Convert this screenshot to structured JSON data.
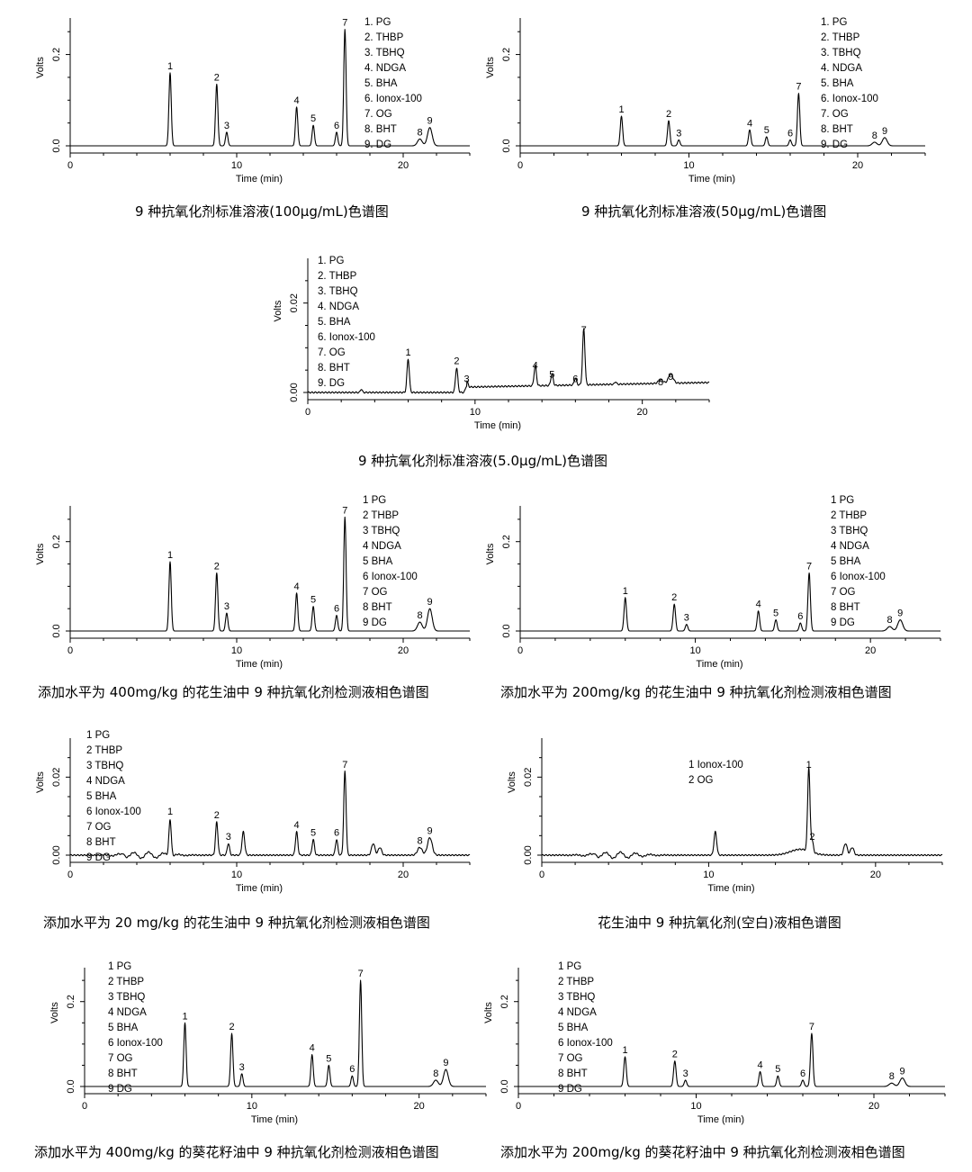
{
  "common": {
    "ylabel": "Volts",
    "xlabel": "Time (min)",
    "x_ticks": [
      "0",
      "10",
      "20"
    ]
  },
  "chart_data": [
    {
      "type": "line",
      "caption": "9 种抗氧化剂标准溶液(100μg/mL)色谱图",
      "xlabel": "Time (min)",
      "ylabel": "Volts",
      "xlim": [
        0,
        24
      ],
      "ylim": [
        0,
        0.28
      ],
      "y_ticks": [
        "0.0",
        "0.2"
      ],
      "y_tick_values": [
        0,
        0.2
      ],
      "legend": [
        "1. PG",
        "2. THBP",
        "3. TBHQ",
        "4. NDGA",
        "5. BHA",
        "6. Ionox-100",
        "7. OG",
        "8. BHT",
        "9. DG"
      ],
      "peaks": [
        {
          "label": "1",
          "t": 6.0,
          "h": 0.16
        },
        {
          "label": "2",
          "t": 8.8,
          "h": 0.135
        },
        {
          "label": "3",
          "t": 9.4,
          "h": 0.03
        },
        {
          "label": "4",
          "t": 13.6,
          "h": 0.085
        },
        {
          "label": "5",
          "t": 14.6,
          "h": 0.045
        },
        {
          "label": "6",
          "t": 16.0,
          "h": 0.03
        },
        {
          "label": "7",
          "t": 16.5,
          "h": 0.255
        },
        {
          "label": "8",
          "t": 21.0,
          "h": 0.015
        },
        {
          "label": "9",
          "t": 21.6,
          "h": 0.04
        }
      ]
    },
    {
      "type": "line",
      "caption": "9 种抗氧化剂标准溶液(50μg/mL)色谱图",
      "xlabel": "Time (min)",
      "ylabel": "Volts",
      "xlim": [
        0,
        24
      ],
      "ylim": [
        0,
        0.28
      ],
      "y_ticks": [
        "0.0",
        "0.2"
      ],
      "y_tick_values": [
        0,
        0.2
      ],
      "legend": [
        "1. PG",
        "2. THBP",
        "3. TBHQ",
        "4. NDGA",
        "5. BHA",
        "6. Ionox-100",
        "7. OG",
        "8. BHT",
        "9. DG"
      ],
      "peaks": [
        {
          "label": "1",
          "t": 6.0,
          "h": 0.065
        },
        {
          "label": "2",
          "t": 8.8,
          "h": 0.055
        },
        {
          "label": "3",
          "t": 9.4,
          "h": 0.013
        },
        {
          "label": "4",
          "t": 13.6,
          "h": 0.035
        },
        {
          "label": "5",
          "t": 14.6,
          "h": 0.02
        },
        {
          "label": "6",
          "t": 16.0,
          "h": 0.013
        },
        {
          "label": "7",
          "t": 16.5,
          "h": 0.115
        },
        {
          "label": "8",
          "t": 21.0,
          "h": 0.008
        },
        {
          "label": "9",
          "t": 21.6,
          "h": 0.018
        }
      ]
    },
    {
      "type": "line",
      "caption": "9 种抗氧化剂标准溶液(5.0μg/mL)色谱图",
      "xlabel": "Time (min)",
      "ylabel": "Volts",
      "xlim": [
        0,
        24
      ],
      "ylim": [
        0,
        0.03
      ],
      "y_ticks": [
        "0.00",
        "0.02"
      ],
      "y_tick_values": [
        0,
        0.02
      ],
      "legend": [
        "1. PG",
        "2. THBP",
        "3. TBHQ",
        "4. NDGA",
        "5. BHA",
        "6. Ionox-100",
        "7. OG",
        "8. BHT",
        "9. DG"
      ],
      "peaks": [
        {
          "label": "1",
          "t": 6.0,
          "h": 0.0075
        },
        {
          "label": "2",
          "t": 8.9,
          "h": 0.0055
        },
        {
          "label": "3",
          "t": 9.5,
          "h": 0.0015
        },
        {
          "label": "4",
          "t": 13.6,
          "h": 0.0045
        },
        {
          "label": "5",
          "t": 14.6,
          "h": 0.0025
        },
        {
          "label": "6",
          "t": 16.0,
          "h": 0.0015
        },
        {
          "label": "7",
          "t": 16.5,
          "h": 0.0125
        },
        {
          "label": "8",
          "t": 21.1,
          "h": 0.0008
        },
        {
          "label": "9",
          "t": 21.7,
          "h": 0.002
        }
      ]
    },
    {
      "type": "line",
      "caption": "添加水平为 400mg/kg 的花生油中 9 种抗氧化剂检测液相色谱图",
      "xlabel": "Time (min)",
      "ylabel": "Volts",
      "xlim": [
        0,
        24
      ],
      "ylim": [
        0,
        0.28
      ],
      "y_ticks": [
        "0.0",
        "0.2"
      ],
      "y_tick_values": [
        0,
        0.2
      ],
      "legend": [
        "1 PG",
        "2 THBP",
        "3 TBHQ",
        "4 NDGA",
        "5 BHA",
        "6 Ionox-100",
        "7 OG",
        "8 BHT",
        "9 DG"
      ],
      "peaks": [
        {
          "label": "1",
          "t": 6.0,
          "h": 0.155
        },
        {
          "label": "2",
          "t": 8.8,
          "h": 0.13
        },
        {
          "label": "3",
          "t": 9.4,
          "h": 0.04
        },
        {
          "label": "4",
          "t": 13.6,
          "h": 0.085
        },
        {
          "label": "5",
          "t": 14.6,
          "h": 0.055
        },
        {
          "label": "6",
          "t": 16.0,
          "h": 0.035
        },
        {
          "label": "7",
          "t": 16.5,
          "h": 0.255
        },
        {
          "label": "8",
          "t": 21.0,
          "h": 0.02
        },
        {
          "label": "9",
          "t": 21.6,
          "h": 0.05
        }
      ]
    },
    {
      "type": "line",
      "caption": "添加水平为 200mg/kg 的花生油中 9 种抗氧化剂检测液相色谱图",
      "xlabel": "Time (min)",
      "ylabel": "Volts",
      "xlim": [
        0,
        24
      ],
      "ylim": [
        0,
        0.28
      ],
      "y_ticks": [
        "0.0",
        "0.2"
      ],
      "y_tick_values": [
        0,
        0.2
      ],
      "legend": [
        "1 PG",
        "2 THBP",
        "3 TBHQ",
        "4 NDGA",
        "5 BHA",
        "6 Ionox-100",
        "7 OG",
        "8 BHT",
        "9 DG"
      ],
      "peaks": [
        {
          "label": "1",
          "t": 6.0,
          "h": 0.075
        },
        {
          "label": "2",
          "t": 8.8,
          "h": 0.06
        },
        {
          "label": "3",
          "t": 9.5,
          "h": 0.015
        },
        {
          "label": "4",
          "t": 13.6,
          "h": 0.045
        },
        {
          "label": "5",
          "t": 14.6,
          "h": 0.025
        },
        {
          "label": "6",
          "t": 16.0,
          "h": 0.018
        },
        {
          "label": "7",
          "t": 16.5,
          "h": 0.13
        },
        {
          "label": "8",
          "t": 21.1,
          "h": 0.01
        },
        {
          "label": "9",
          "t": 21.7,
          "h": 0.025
        }
      ]
    },
    {
      "type": "line",
      "caption": "添加水平为 20 mg/kg 的花生油中 9 种抗氧化剂检测液相色谱图",
      "xlabel": "Time (min)",
      "ylabel": "Volts",
      "xlim": [
        0,
        24
      ],
      "ylim": [
        0,
        0.03
      ],
      "y_ticks": [
        "0.00",
        "0.02"
      ],
      "y_tick_values": [
        0,
        0.02
      ],
      "legend": [
        "1 PG",
        "2 THBP",
        "3 TBHQ",
        "4 NDGA",
        "5 BHA",
        "6 Ionox-100",
        "7 OG",
        "8 BHT",
        "9 DG"
      ],
      "peaks": [
        {
          "label": "1",
          "t": 6.0,
          "h": 0.0095
        },
        {
          "label": "2",
          "t": 8.8,
          "h": 0.0085
        },
        {
          "label": "3",
          "t": 9.5,
          "h": 0.003
        },
        {
          "label": "4",
          "t": 13.6,
          "h": 0.006
        },
        {
          "label": "5",
          "t": 14.6,
          "h": 0.004
        },
        {
          "label": "6",
          "t": 16.0,
          "h": 0.004
        },
        {
          "label": "7",
          "t": 16.5,
          "h": 0.0215
        },
        {
          "label": "8",
          "t": 21.0,
          "h": 0.002
        },
        {
          "label": "9",
          "t": 21.6,
          "h": 0.0045
        }
      ]
    },
    {
      "type": "line",
      "caption": "花生油中 9 种抗氧化剂(空白)液相色谱图",
      "xlabel": "Time (min)",
      "ylabel": "Volts",
      "xlim": [
        0,
        24
      ],
      "ylim": [
        0,
        0.03
      ],
      "y_ticks": [
        "0.00",
        "0.02"
      ],
      "y_tick_values": [
        0,
        0.02
      ],
      "legend": [
        "1 Ionox-100",
        "2 OG"
      ],
      "peaks": [
        {
          "label": "1",
          "t": 16.0,
          "h": 0.0215
        },
        {
          "label": "2",
          "t": 16.2,
          "h": 0.003
        }
      ]
    },
    {
      "type": "line",
      "caption": "添加水平为 400mg/kg 的葵花籽油中 9 种抗氧化剂检测液相色谱图",
      "xlabel": "Time (min)",
      "ylabel": "Volts",
      "xlim": [
        0,
        24
      ],
      "ylim": [
        0,
        0.28
      ],
      "y_ticks": [
        "0.0",
        "0.2"
      ],
      "y_tick_values": [
        0,
        0.2
      ],
      "legend": [
        "1 PG",
        "2 THBP",
        "3 TBHQ",
        "4 NDGA",
        "5 BHA",
        "6 Ionox-100",
        "7 OG",
        "8 BHT",
        "9 DG"
      ],
      "peaks": [
        {
          "label": "1",
          "t": 6.0,
          "h": 0.15
        },
        {
          "label": "2",
          "t": 8.8,
          "h": 0.125
        },
        {
          "label": "3",
          "t": 9.4,
          "h": 0.03
        },
        {
          "label": "4",
          "t": 13.6,
          "h": 0.075
        },
        {
          "label": "5",
          "t": 14.6,
          "h": 0.05
        },
        {
          "label": "6",
          "t": 16.0,
          "h": 0.025
        },
        {
          "label": "7",
          "t": 16.5,
          "h": 0.25
        },
        {
          "label": "8",
          "t": 21.0,
          "h": 0.015
        },
        {
          "label": "9",
          "t": 21.6,
          "h": 0.04
        }
      ]
    },
    {
      "type": "line",
      "caption": "添加水平为 200mg/kg 的葵花籽油中 9 种抗氧化剂检测液相色谱图",
      "xlabel": "Time (min)",
      "ylabel": "Volts",
      "xlim": [
        0,
        24
      ],
      "ylim": [
        0,
        0.28
      ],
      "y_ticks": [
        "0.0",
        "0.2"
      ],
      "y_tick_values": [
        0,
        0.2
      ],
      "legend": [
        "1 PG",
        "2 THBP",
        "3 TBHQ",
        "4 NDGA",
        "5 BHA",
        "6 Ionox-100",
        "7 OG",
        "8 BHT",
        "9 DG"
      ],
      "peaks": [
        {
          "label": "1",
          "t": 6.0,
          "h": 0.07
        },
        {
          "label": "2",
          "t": 8.8,
          "h": 0.06
        },
        {
          "label": "3",
          "t": 9.4,
          "h": 0.015
        },
        {
          "label": "4",
          "t": 13.6,
          "h": 0.035
        },
        {
          "label": "5",
          "t": 14.6,
          "h": 0.025
        },
        {
          "label": "6",
          "t": 16.0,
          "h": 0.015
        },
        {
          "label": "7",
          "t": 16.5,
          "h": 0.125
        },
        {
          "label": "8",
          "t": 21.0,
          "h": 0.008
        },
        {
          "label": "9",
          "t": 21.6,
          "h": 0.02
        }
      ]
    }
  ]
}
